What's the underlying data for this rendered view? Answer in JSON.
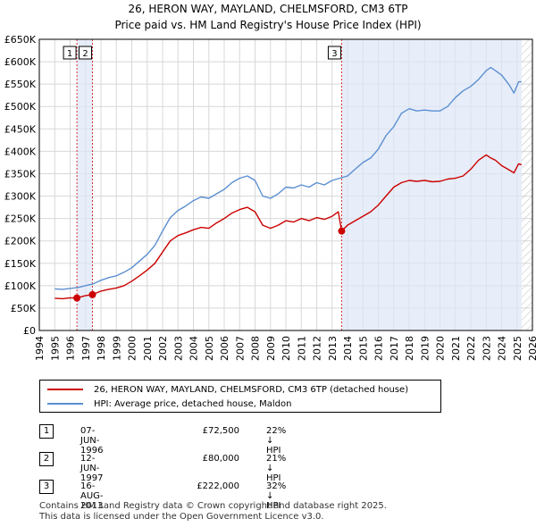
{
  "title_line1": "26, HERON WAY, MAYLAND, CHELMSFORD, CM3 6TP",
  "title_line2": "Price paid vs. HM Land Registry's House Price Index (HPI)",
  "chart_data": {
    "type": "line",
    "title": "Price paid vs. HM Land Registry's House Price Index (HPI)",
    "xlabel": "",
    "ylabel": "",
    "xlim": [
      1994,
      2026
    ],
    "ylim": [
      0,
      650000
    ],
    "y_ticks": [
      0,
      50000,
      100000,
      150000,
      200000,
      250000,
      300000,
      350000,
      400000,
      450000,
      500000,
      550000,
      600000,
      650000
    ],
    "y_tick_labels": [
      "£0",
      "£50K",
      "£100K",
      "£150K",
      "£200K",
      "£250K",
      "£300K",
      "£350K",
      "£400K",
      "£450K",
      "£500K",
      "£550K",
      "£600K",
      "£650K"
    ],
    "x_ticks": [
      1994,
      1995,
      1996,
      1997,
      1998,
      1999,
      2000,
      2001,
      2002,
      2003,
      2004,
      2005,
      2006,
      2007,
      2008,
      2009,
      2010,
      2011,
      2012,
      2013,
      2014,
      2015,
      2016,
      2017,
      2018,
      2019,
      2020,
      2021,
      2022,
      2023,
      2024,
      2025,
      2026
    ],
    "shaded_regions": [
      {
        "from": 1996.44,
        "to": 1997.45
      },
      {
        "from": 2013.62,
        "to": 2025.3
      }
    ],
    "hatched_after": 2025.3,
    "series": [
      {
        "name": "26, HERON WAY, MAYLAND, CHELMSFORD, CM3 6TP (detached house)",
        "color": "#cc0000",
        "x": [
          1995.0,
          1995.5,
          1996.0,
          1996.44,
          1997.0,
          1997.45,
          1998.0,
          1998.5,
          1999.0,
          1999.5,
          2000.0,
          2000.5,
          2001.0,
          2001.5,
          2002.0,
          2002.5,
          2003.0,
          2003.5,
          2004.0,
          2004.5,
          2005.0,
          2005.5,
          2006.0,
          2006.5,
          2007.0,
          2007.5,
          2008.0,
          2008.5,
          2009.0,
          2009.5,
          2010.0,
          2010.5,
          2011.0,
          2011.5,
          2012.0,
          2012.5,
          2013.0,
          2013.4,
          2013.62,
          2014.0,
          2014.5,
          2015.0,
          2015.5,
          2016.0,
          2016.5,
          2017.0,
          2017.5,
          2018.0,
          2018.5,
          2019.0,
          2019.5,
          2020.0,
          2020.5,
          2021.0,
          2021.5,
          2022.0,
          2022.5,
          2023.0,
          2023.3,
          2023.6,
          2024.0,
          2024.5,
          2024.8,
          2025.1,
          2025.3
        ],
        "values": [
          72000,
          71000,
          73000,
          72500,
          78000,
          80000,
          88000,
          92000,
          95000,
          100000,
          110000,
          122000,
          135000,
          150000,
          175000,
          200000,
          212000,
          218000,
          225000,
          230000,
          228000,
          240000,
          250000,
          262000,
          270000,
          275000,
          265000,
          235000,
          228000,
          235000,
          245000,
          242000,
          250000,
          245000,
          252000,
          248000,
          255000,
          265000,
          222000,
          235000,
          245000,
          255000,
          265000,
          280000,
          300000,
          320000,
          330000,
          335000,
          333000,
          335000,
          332000,
          333000,
          338000,
          340000,
          345000,
          360000,
          380000,
          392000,
          385000,
          380000,
          368000,
          358000,
          352000,
          372000,
          370000
        ]
      },
      {
        "name": "HPI: Average price, detached house, Maldon",
        "color": "#5b8fd1",
        "x": [
          1995.0,
          1995.5,
          1996.0,
          1996.5,
          1997.0,
          1997.5,
          1998.0,
          1998.5,
          1999.0,
          1999.5,
          2000.0,
          2000.5,
          2001.0,
          2001.5,
          2002.0,
          2002.5,
          2003.0,
          2003.5,
          2004.0,
          2004.5,
          2005.0,
          2005.5,
          2006.0,
          2006.5,
          2007.0,
          2007.5,
          2008.0,
          2008.5,
          2009.0,
          2009.5,
          2010.0,
          2010.5,
          2011.0,
          2011.5,
          2012.0,
          2012.5,
          2013.0,
          2013.5,
          2014.0,
          2014.5,
          2015.0,
          2015.5,
          2016.0,
          2016.5,
          2017.0,
          2017.5,
          2018.0,
          2018.5,
          2019.0,
          2019.5,
          2020.0,
          2020.5,
          2021.0,
          2021.5,
          2022.0,
          2022.5,
          2023.0,
          2023.3,
          2023.6,
          2024.0,
          2024.5,
          2024.8,
          2025.1,
          2025.3
        ],
        "values": [
          93000,
          92000,
          94000,
          96000,
          100000,
          104000,
          112000,
          118000,
          122000,
          130000,
          140000,
          155000,
          170000,
          190000,
          222000,
          252000,
          268000,
          278000,
          290000,
          298000,
          295000,
          305000,
          315000,
          330000,
          340000,
          345000,
          335000,
          300000,
          295000,
          305000,
          320000,
          318000,
          325000,
          320000,
          330000,
          325000,
          335000,
          340000,
          345000,
          360000,
          375000,
          385000,
          405000,
          435000,
          455000,
          485000,
          495000,
          490000,
          492000,
          490000,
          490000,
          500000,
          520000,
          535000,
          545000,
          560000,
          580000,
          587000,
          580000,
          570000,
          548000,
          530000,
          555000,
          555000
        ]
      }
    ],
    "transactions": [
      {
        "marker": "1",
        "x": 1996.44,
        "y": 72500
      },
      {
        "marker": "2",
        "x": 1997.45,
        "y": 80000
      },
      {
        "marker": "3",
        "x": 2013.62,
        "y": 222000
      }
    ]
  },
  "legend": {
    "red_label": "26, HERON WAY, MAYLAND, CHELMSFORD, CM3 6TP (detached house)",
    "blue_label": "HPI: Average price, detached house, Maldon",
    "red_color": "#cc0000",
    "blue_color": "#5b8fd1"
  },
  "transactions_table": [
    {
      "num": "1",
      "date": "07-JUN-1996",
      "price": "£72,500",
      "hpi": "22% ↓ HPI"
    },
    {
      "num": "2",
      "date": "12-JUN-1997",
      "price": "£80,000",
      "hpi": "21% ↓ HPI"
    },
    {
      "num": "3",
      "date": "16-AUG-2013",
      "price": "£222,000",
      "hpi": "32% ↓ HPI"
    }
  ],
  "footer_line1": "Contains HM Land Registry data © Crown copyright and database right 2025.",
  "footer_line2": "This data is licensed under the Open Government Licence v3.0."
}
